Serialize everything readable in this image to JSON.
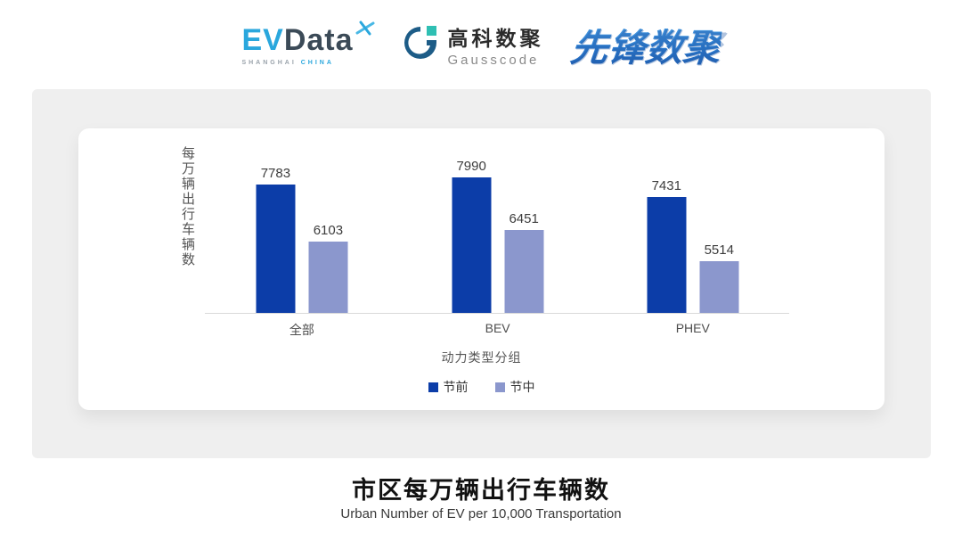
{
  "header": {
    "evdata": {
      "ev": "EV",
      "data": "Data",
      "sub_left": "SHANGHAI",
      "sub_right": "CHINA"
    },
    "gausscode": {
      "name_cn": "高科数聚",
      "name_en": "Gausscode"
    },
    "xianfeng": {
      "name": "先锋数聚"
    }
  },
  "chart_data": {
    "type": "bar",
    "categories": [
      "全部",
      "BEV",
      "PHEV"
    ],
    "series": [
      {
        "name": "节前",
        "color": "#0c3da8",
        "values": [
          7783,
          7990,
          7431
        ]
      },
      {
        "name": "节中",
        "color": "#8b97cd",
        "values": [
          6103,
          6451,
          5514
        ]
      }
    ],
    "ylabel": "每万辆出行车辆数",
    "xlabel": "动力类型分组",
    "title": "",
    "ylim": [
      4000,
      8400
    ],
    "grid": false,
    "legend_position": "bottom",
    "data_labels": true
  },
  "footer": {
    "title": "市区每万辆出行车辆数",
    "subtitle": "Urban Number of EV per 10,000 Transportation"
  },
  "colors": {
    "panel_bg": "#efefef",
    "card_bg": "#ffffff",
    "axis_line": "#d9d9d9",
    "series1": "#0c3da8",
    "series2": "#8b97cd",
    "evdata_blue": "#2aa7dd",
    "evdata_dark": "#3b4a57",
    "gausscode_dark": "#1d5c87",
    "gausscode_teal": "#2fbfb3",
    "xianfeng_blue": "#2f7fd2"
  }
}
